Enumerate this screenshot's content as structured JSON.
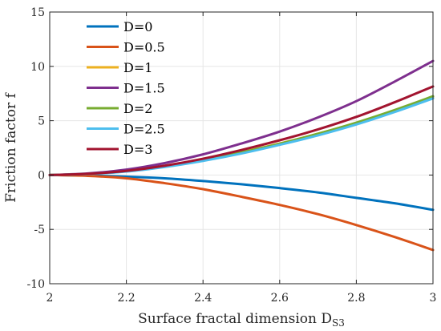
{
  "chart_data": {
    "type": "line",
    "xlabel": "Surface fractal dimension D",
    "xlabel_subscript": "S3",
    "ylabel": "Friction factor f",
    "xlim": [
      2,
      3
    ],
    "ylim": [
      -10,
      15
    ],
    "xticks": [
      2,
      2.2,
      2.4,
      2.6,
      2.8,
      3
    ],
    "xtick_labels": [
      "2",
      "2.2",
      "2.4",
      "2.6",
      "2.8",
      "3"
    ],
    "yticks": [
      -10,
      -5,
      0,
      5,
      10,
      15
    ],
    "ytick_labels": [
      "-10",
      "-5",
      "0",
      "5",
      "10",
      "15"
    ],
    "grid": true,
    "legend_position": "top-left",
    "x": [
      2.0,
      2.1,
      2.2,
      2.3,
      2.4,
      2.5,
      2.6,
      2.7,
      2.8,
      2.9,
      3.0
    ],
    "series": [
      {
        "name": "D=0",
        "color": "#0072BD",
        "values": [
          0,
          -0.05,
          -0.15,
          -0.3,
          -0.55,
          -0.85,
          -1.2,
          -1.6,
          -2.1,
          -2.6,
          -3.2
        ]
      },
      {
        "name": "D=0.5",
        "color": "#D95319",
        "values": [
          0,
          -0.08,
          -0.3,
          -0.75,
          -1.3,
          -2.0,
          -2.75,
          -3.6,
          -4.6,
          -5.7,
          -6.9
        ]
      },
      {
        "name": "D=1",
        "color": "#EDB120",
        "values": [
          0,
          0.1,
          0.35,
          0.8,
          1.4,
          2.1,
          2.9,
          3.8,
          4.8,
          5.95,
          7.2
        ]
      },
      {
        "name": "D=1.5",
        "color": "#7E2F8E",
        "values": [
          0,
          0.15,
          0.5,
          1.1,
          1.9,
          2.9,
          4.0,
          5.3,
          6.8,
          8.6,
          10.5
        ]
      },
      {
        "name": "D=2",
        "color": "#77AC30",
        "values": [
          0,
          0.1,
          0.34,
          0.78,
          1.38,
          2.08,
          2.88,
          3.8,
          4.82,
          5.98,
          7.25
        ]
      },
      {
        "name": "D=2.5",
        "color": "#4DBEEE",
        "values": [
          0,
          0.09,
          0.32,
          0.74,
          1.3,
          1.98,
          2.78,
          3.65,
          4.65,
          5.8,
          7.05
        ]
      },
      {
        "name": "D=3",
        "color": "#A2142F",
        "values": [
          0,
          0.11,
          0.38,
          0.86,
          1.5,
          2.3,
          3.2,
          4.2,
          5.35,
          6.7,
          8.15
        ]
      }
    ]
  }
}
